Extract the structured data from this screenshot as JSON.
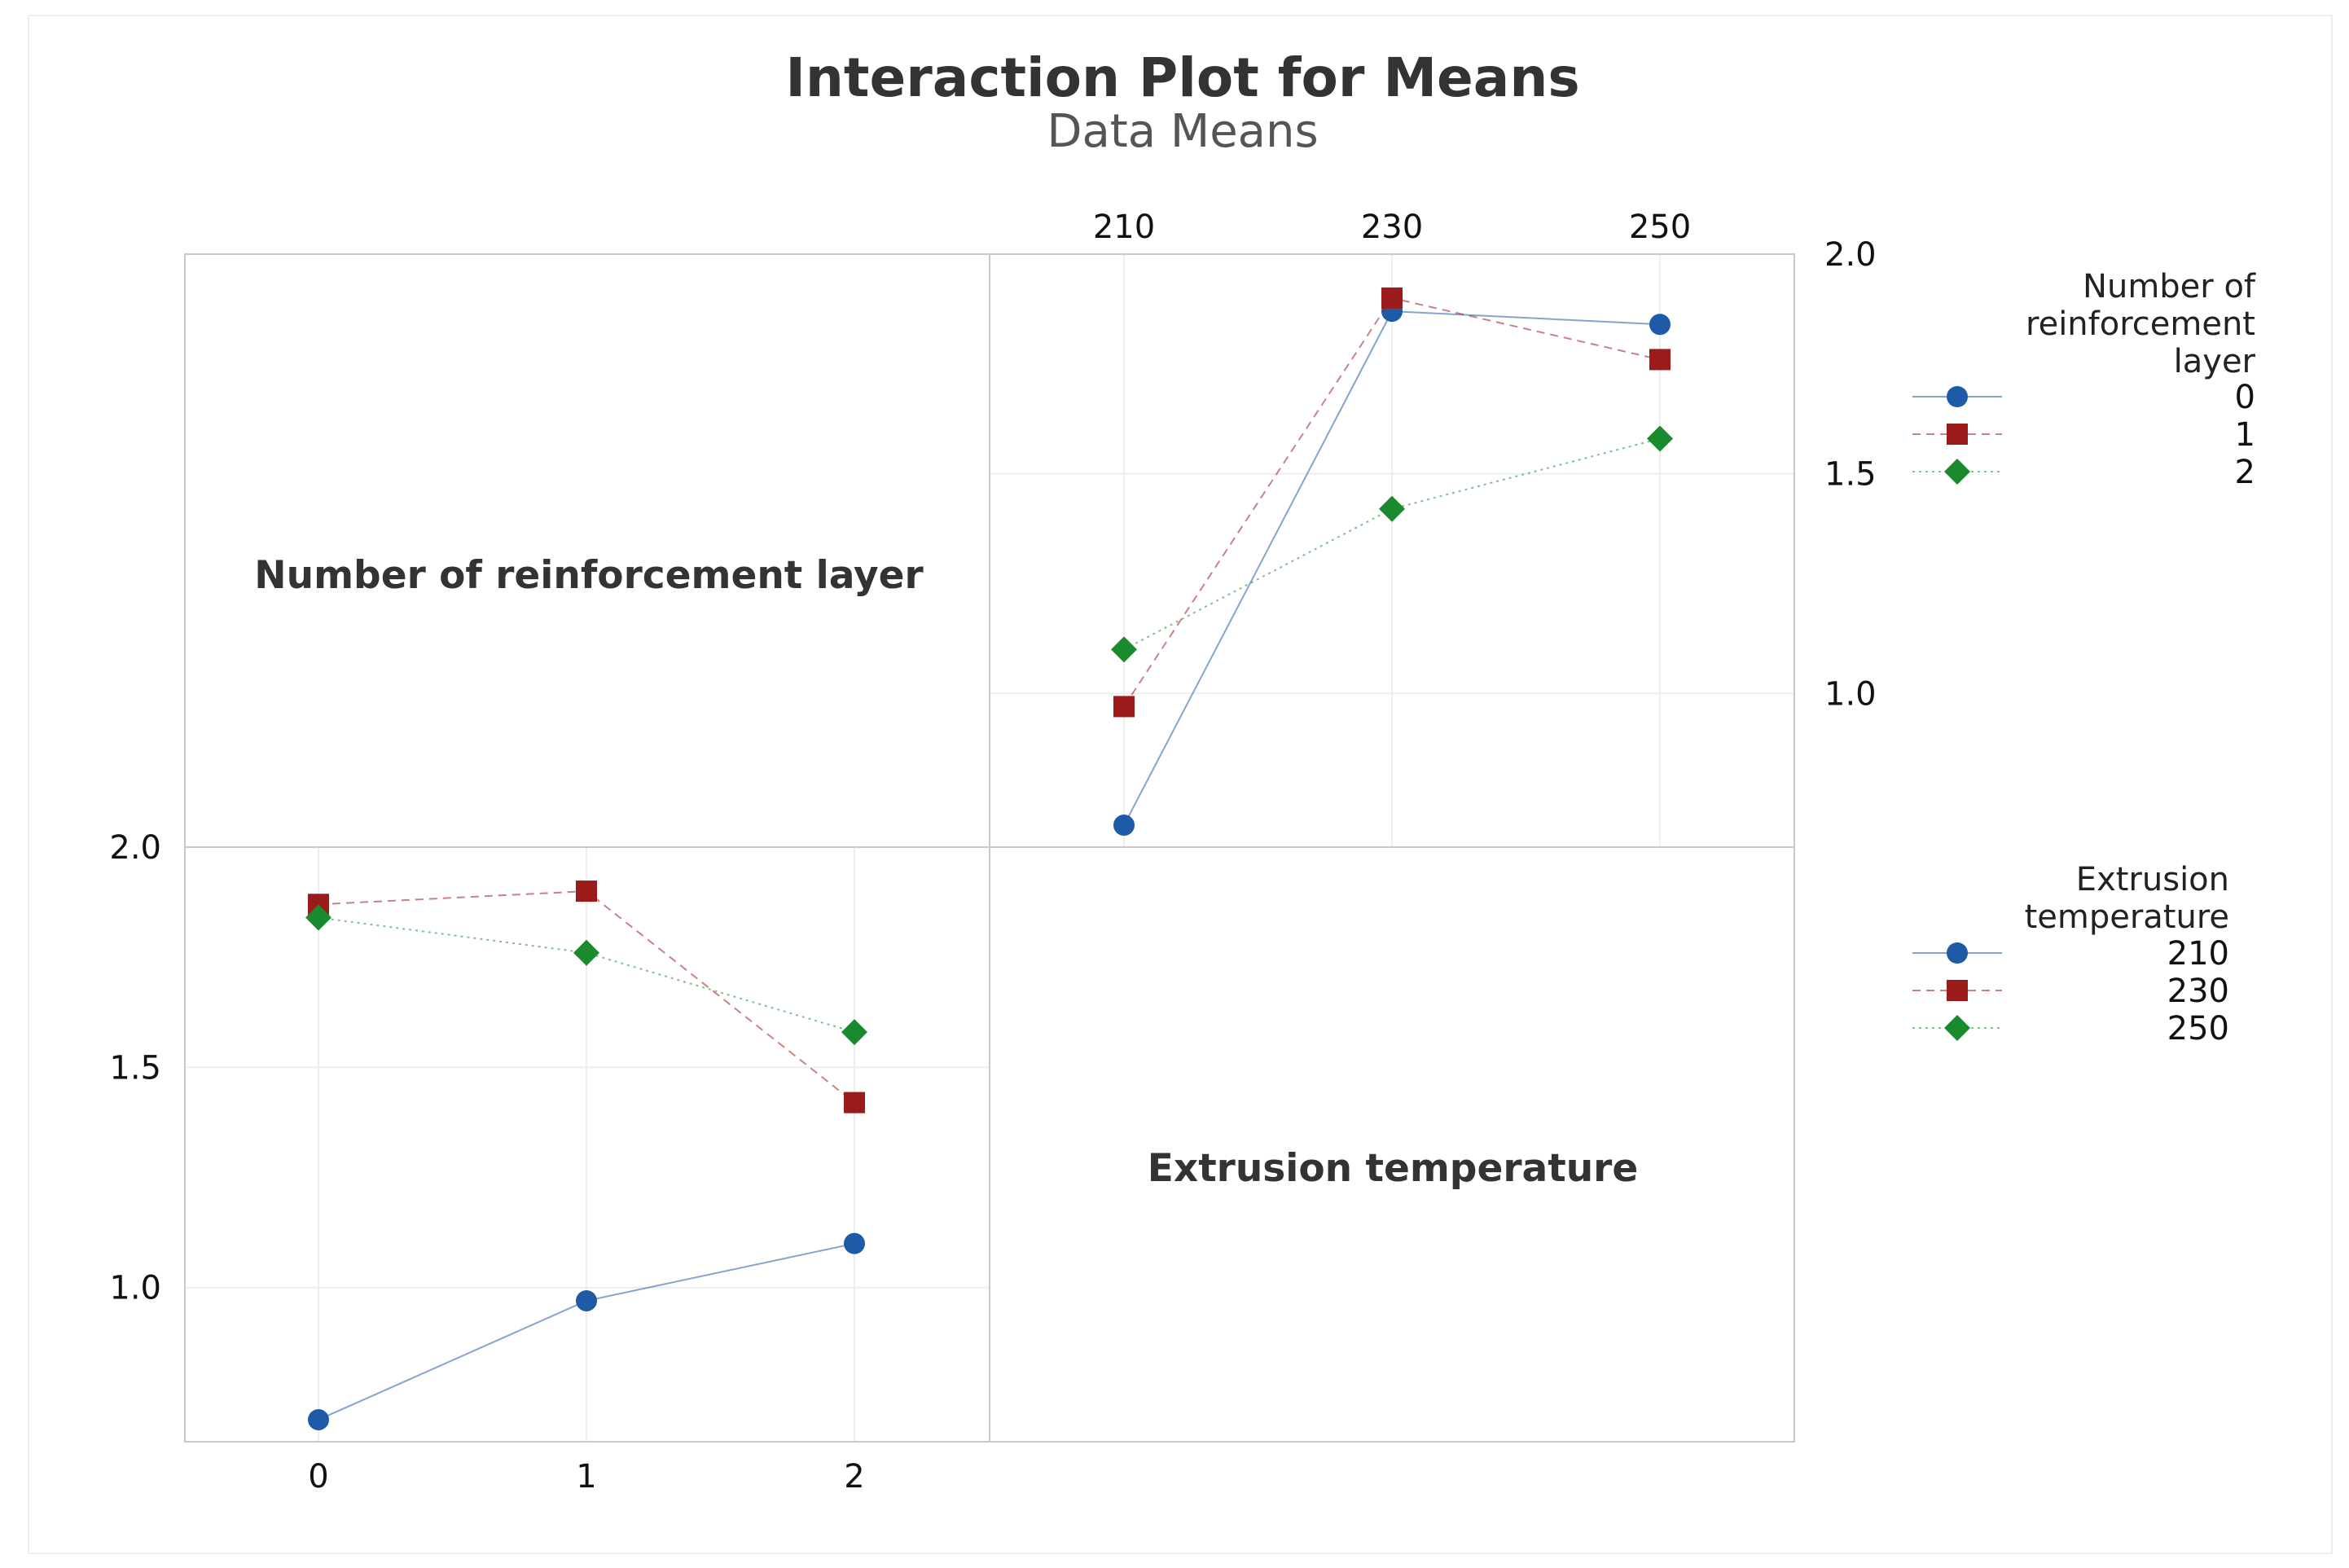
{
  "chart_data": {
    "type": "line",
    "title": "Interaction Plot for Means",
    "subtitle": "Data Means",
    "ylim": [
      0.65,
      2.0
    ],
    "y_ticks": [
      "2.0",
      "1.5",
      "1.0"
    ],
    "colors": {
      "s0": "#1f5aa6",
      "s1": "#9b1b1b",
      "s2": "#1a8a2e"
    },
    "panels": [
      {
        "id": "top-right",
        "diagonal_label": "Number of reinforcement layer",
        "xlabel": "Extrusion temperature",
        "categories": [
          "210",
          "230",
          "250"
        ],
        "legend_title": "Number of reinforcement layer",
        "legend_title_lines": [
          "Number of",
          "reinforcement",
          "layer"
        ],
        "series": [
          {
            "name": "0",
            "marker": "circle",
            "values": [
              0.7,
              1.87,
              1.84
            ]
          },
          {
            "name": "1",
            "marker": "square",
            "values": [
              0.97,
              1.9,
              1.76
            ]
          },
          {
            "name": "2",
            "marker": "diamond",
            "values": [
              1.1,
              1.42,
              1.58
            ]
          }
        ]
      },
      {
        "id": "bottom-left",
        "diagonal_label": "Extrusion temperature",
        "xlabel": "Number of reinforcement layer",
        "categories": [
          "0",
          "1",
          "2"
        ],
        "legend_title": "Extrusion temperature",
        "legend_title_lines": [
          "Extrusion",
          "temperature"
        ],
        "series": [
          {
            "name": "210",
            "marker": "circle",
            "values": [
              0.7,
              0.97,
              1.1
            ]
          },
          {
            "name": "230",
            "marker": "square",
            "values": [
              1.87,
              1.9,
              1.42
            ]
          },
          {
            "name": "250",
            "marker": "diamond",
            "values": [
              1.84,
              1.76,
              1.58
            ]
          }
        ]
      }
    ]
  }
}
